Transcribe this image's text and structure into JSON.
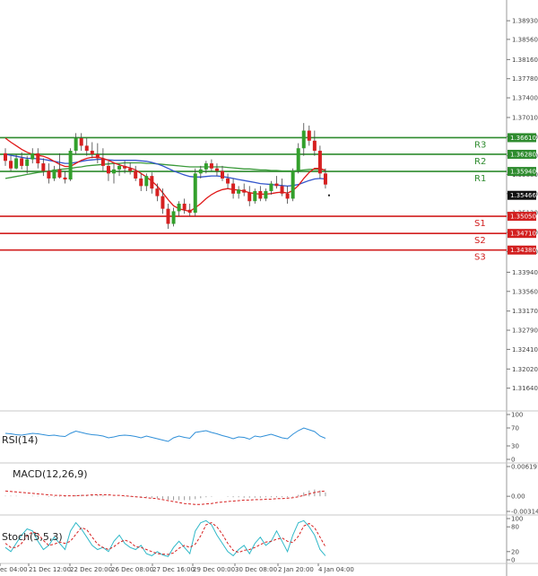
{
  "chart_data": {
    "type": "candlestick",
    "main": {
      "ylim": [
        1.3126,
        1.3927
      ],
      "price_ticks": [
        "1.38930",
        "1.38560",
        "1.38160",
        "1.37780",
        "1.37400",
        "1.37010",
        "1.36630",
        "1.36250",
        "1.35880",
        "1.35500",
        "1.35120",
        "1.34730",
        "1.34350",
        "1.33940",
        "1.33560",
        "1.33170",
        "1.32790",
        "1.32410",
        "1.32020",
        "1.31640"
      ],
      "resistance": [
        {
          "label": "R3",
          "value": 1.3661,
          "tag": "1.36610"
        },
        {
          "label": "R2",
          "value": 1.3628,
          "tag": "1.36280"
        },
        {
          "label": "R1",
          "value": 1.3594,
          "tag": "1.35940"
        }
      ],
      "support": [
        {
          "label": "S1",
          "value": 1.3505,
          "tag": "1.35050"
        },
        {
          "label": "S2",
          "value": 1.3471,
          "tag": "1.34710"
        },
        {
          "label": "S3",
          "value": 1.3438,
          "tag": "1.34380"
        }
      ],
      "last_price": {
        "value": 1.35466,
        "tag": "1.35466"
      },
      "candles": [
        [
          1.363,
          1.364,
          1.3605,
          1.3615
        ],
        [
          1.3615,
          1.3625,
          1.3595,
          1.36
        ],
        [
          1.36,
          1.3628,
          1.3598,
          1.362
        ],
        [
          1.362,
          1.3632,
          1.3598,
          1.3605
        ],
        [
          1.3605,
          1.3625,
          1.359,
          1.3618
        ],
        [
          1.3618,
          1.364,
          1.361,
          1.363
        ],
        [
          1.363,
          1.364,
          1.36,
          1.361
        ],
        [
          1.361,
          1.362,
          1.3585,
          1.3595
        ],
        [
          1.3595,
          1.361,
          1.357,
          1.358
        ],
        [
          1.358,
          1.3605,
          1.3575,
          1.3598
        ],
        [
          1.3598,
          1.363,
          1.358,
          1.3582
        ],
        [
          1.3582,
          1.3595,
          1.357,
          1.3578
        ],
        [
          1.3578,
          1.364,
          1.3575,
          1.3635
        ],
        [
          1.3635,
          1.367,
          1.3628,
          1.366
        ],
        [
          1.366,
          1.367,
          1.3635,
          1.3645
        ],
        [
          1.3645,
          1.366,
          1.3625,
          1.3635
        ],
        [
          1.3635,
          1.3652,
          1.362,
          1.3628
        ],
        [
          1.3628,
          1.365,
          1.361,
          1.362
        ],
        [
          1.362,
          1.364,
          1.3595,
          1.3605
        ],
        [
          1.3605,
          1.3615,
          1.3575,
          1.359
        ],
        [
          1.359,
          1.361,
          1.357,
          1.3598
        ],
        [
          1.3598,
          1.361,
          1.3585,
          1.3605
        ],
        [
          1.3605,
          1.3615,
          1.359,
          1.36
        ],
        [
          1.36,
          1.3612,
          1.3588,
          1.3595
        ],
        [
          1.3595,
          1.3605,
          1.3575,
          1.358
        ],
        [
          1.358,
          1.359,
          1.3555,
          1.3565
        ],
        [
          1.3565,
          1.359,
          1.3555,
          1.3585
        ],
        [
          1.3585,
          1.3592,
          1.355,
          1.356
        ],
        [
          1.356,
          1.357,
          1.3535,
          1.3545
        ],
        [
          1.3545,
          1.356,
          1.351,
          1.352
        ],
        [
          1.352,
          1.353,
          1.348,
          1.349
        ],
        [
          1.349,
          1.3522,
          1.3485,
          1.3515
        ],
        [
          1.3515,
          1.3535,
          1.3505,
          1.353
        ],
        [
          1.353,
          1.354,
          1.351,
          1.3518
        ],
        [
          1.3518,
          1.353,
          1.3505,
          1.3512
        ],
        [
          1.3512,
          1.36,
          1.3505,
          1.359
        ],
        [
          1.359,
          1.3605,
          1.358,
          1.3598
        ],
        [
          1.3598,
          1.3615,
          1.359,
          1.361
        ],
        [
          1.361,
          1.3618,
          1.3595,
          1.36
        ],
        [
          1.36,
          1.361,
          1.3585,
          1.3595
        ],
        [
          1.3595,
          1.3605,
          1.3575,
          1.358
        ],
        [
          1.358,
          1.359,
          1.356,
          1.357
        ],
        [
          1.357,
          1.358,
          1.354,
          1.355
        ],
        [
          1.355,
          1.3565,
          1.354,
          1.3558
        ],
        [
          1.3558,
          1.357,
          1.3545,
          1.3552
        ],
        [
          1.3552,
          1.3565,
          1.3525,
          1.3535
        ],
        [
          1.3535,
          1.356,
          1.353,
          1.3555
        ],
        [
          1.3555,
          1.3565,
          1.3535,
          1.354
        ],
        [
          1.354,
          1.356,
          1.3535,
          1.3555
        ],
        [
          1.3555,
          1.3575,
          1.3548,
          1.357
        ],
        [
          1.357,
          1.3585,
          1.356,
          1.3565
        ],
        [
          1.3565,
          1.358,
          1.3545,
          1.355
        ],
        [
          1.355,
          1.3565,
          1.353,
          1.354
        ],
        [
          1.354,
          1.36,
          1.3535,
          1.3595
        ],
        [
          1.3595,
          1.365,
          1.359,
          1.364
        ],
        [
          1.364,
          1.369,
          1.3625,
          1.3675
        ],
        [
          1.3675,
          1.3685,
          1.3645,
          1.3655
        ],
        [
          1.3655,
          1.3675,
          1.3625,
          1.3635
        ],
        [
          1.3635,
          1.3645,
          1.358,
          1.359
        ],
        [
          1.359,
          1.36,
          1.356,
          1.3568
        ]
      ],
      "ma_fast": [
        1.366,
        1.3652,
        1.3645,
        1.3638,
        1.3632,
        1.3628,
        1.3626,
        1.3624,
        1.362,
        1.3614,
        1.3608,
        1.3604,
        1.3604,
        1.361,
        1.3616,
        1.362,
        1.3622,
        1.3622,
        1.362,
        1.3616,
        1.3611,
        1.3607,
        1.3604,
        1.3601,
        1.3597,
        1.359,
        1.3583,
        1.3575,
        1.3565,
        1.3552,
        1.3538,
        1.3526,
        1.352,
        1.3517,
        1.3515,
        1.3522,
        1.353,
        1.354,
        1.3548,
        1.3554,
        1.3558,
        1.356,
        1.3558,
        1.3557,
        1.3555,
        1.3552,
        1.355,
        1.3549,
        1.3549,
        1.355,
        1.3552,
        1.3553,
        1.3551,
        1.3556,
        1.3566,
        1.358,
        1.3592,
        1.36,
        1.36,
        1.3596
      ],
      "ma_mid": [
        1.3628,
        1.3626,
        1.3624,
        1.3622,
        1.362,
        1.362,
        1.3619,
        1.3618,
        1.3616,
        1.3614,
        1.3612,
        1.361,
        1.361,
        1.3612,
        1.3614,
        1.3616,
        1.3617,
        1.3618,
        1.3618,
        1.3617,
        1.3616,
        1.3616,
        1.3616,
        1.3616,
        1.3616,
        1.3615,
        1.3614,
        1.3612,
        1.3609,
        1.3605,
        1.36,
        1.3595,
        1.3591,
        1.3587,
        1.3584,
        1.3583,
        1.3583,
        1.3584,
        1.3585,
        1.3585,
        1.3584,
        1.3582,
        1.358,
        1.3578,
        1.3576,
        1.3574,
        1.3572,
        1.357,
        1.3569,
        1.3568,
        1.3567,
        1.3566,
        1.3565,
        1.3566,
        1.3568,
        1.3572,
        1.3576,
        1.3579,
        1.358,
        1.3579
      ],
      "ma_slow": [
        1.358,
        1.3582,
        1.3584,
        1.3586,
        1.3588,
        1.359,
        1.3592,
        1.3593,
        1.3595,
        1.3596,
        1.3598,
        1.3599,
        1.36,
        1.3602,
        1.3603,
        1.3605,
        1.3606,
        1.3607,
        1.3608,
        1.3609,
        1.361,
        1.361,
        1.3611,
        1.3611,
        1.3611,
        1.3611,
        1.361,
        1.361,
        1.3609,
        1.3608,
        1.3607,
        1.3606,
        1.3605,
        1.3604,
        1.3603,
        1.3603,
        1.3603,
        1.3603,
        1.3603,
        1.3603,
        1.3603,
        1.3602,
        1.3601,
        1.36,
        1.3599,
        1.3599,
        1.3598,
        1.3597,
        1.3597,
        1.3596,
        1.3596,
        1.3595,
        1.3595,
        1.3595,
        1.3596,
        1.3597,
        1.3598,
        1.3598,
        1.3598,
        1.3597
      ]
    },
    "x_labels": [
      "ec 04:00",
      "21 Dec 12:00",
      "22 Dec 20:00",
      "26 Dec 08:00",
      "27 Dec 16:00",
      "29 Dec 00:00",
      "30 Dec 08:00",
      "2 Jan 20:00",
      "4 Jan 04:00"
    ],
    "rsi": {
      "name": "RSI(14)",
      "ticks": [
        "100",
        "70",
        "30",
        "0"
      ],
      "values": [
        58,
        57,
        55,
        54,
        56,
        58,
        57,
        55,
        53,
        54,
        52,
        51,
        58,
        63,
        60,
        57,
        55,
        54,
        52,
        48,
        50,
        53,
        54,
        53,
        51,
        48,
        52,
        49,
        46,
        43,
        40,
        48,
        52,
        49,
        47,
        60,
        62,
        64,
        60,
        57,
        53,
        50,
        46,
        50,
        49,
        45,
        52,
        50,
        53,
        56,
        52,
        48,
        46,
        56,
        64,
        70,
        66,
        62,
        52,
        47
      ]
    },
    "macd": {
      "name": "MACD(12,26,9)",
      "ticks": [
        "0.006191",
        "0.00",
        "-0.003148"
      ],
      "hist": [
        0.0001,
        0.0001,
        0.0001,
        0.0,
        0.0,
        0.0001,
        0.0001,
        0.0,
        -0.0001,
        -0.0001,
        -0.0001,
        -0.0001,
        0.0,
        0.0002,
        0.0003,
        0.0003,
        0.0003,
        0.0002,
        0.0002,
        0.0001,
        0.0,
        0.0,
        -0.0001,
        -0.0001,
        -0.0001,
        -0.0002,
        -0.0002,
        -0.0003,
        -0.0004,
        -0.0005,
        -0.0007,
        -0.0008,
        -0.0008,
        -0.0008,
        -0.0008,
        -0.0006,
        -0.0004,
        -0.0002,
        -0.0001,
        0.0,
        0.0,
        -0.0001,
        -0.0002,
        -0.0002,
        -0.0003,
        -0.0003,
        -0.0003,
        -0.0003,
        -0.0002,
        -0.0002,
        -0.0002,
        -0.0002,
        -0.0002,
        -0.0001,
        0.0003,
        0.0008,
        0.0012,
        0.0014,
        0.0012,
        0.0008
      ],
      "signal": [
        0.0011,
        0.001,
        0.0009,
        0.0008,
        0.0007,
        0.0006,
        0.0005,
        0.0004,
        0.0003,
        0.0002,
        0.0002,
        0.0001,
        0.0001,
        0.0001,
        0.0002,
        0.0002,
        0.0003,
        0.0003,
        0.0003,
        0.0003,
        0.0002,
        0.0002,
        0.0001,
        0.0,
        -0.0001,
        -0.0002,
        -0.0003,
        -0.0004,
        -0.0005,
        -0.0007,
        -0.0009,
        -0.0011,
        -0.0013,
        -0.0015,
        -0.0016,
        -0.0017,
        -0.0017,
        -0.0016,
        -0.0015,
        -0.0013,
        -0.0012,
        -0.0011,
        -0.001,
        -0.0009,
        -0.0008,
        -0.0008,
        -0.0007,
        -0.0007,
        -0.0006,
        -0.0006,
        -0.0005,
        -0.0005,
        -0.0004,
        -0.0003,
        -0.0001,
        0.0002,
        0.0005,
        0.0008,
        0.001,
        0.0011
      ]
    },
    "stoch": {
      "name": "Stoch(5,5,3)",
      "ticks": [
        "100",
        "80",
        "20",
        "0"
      ],
      "k": [
        30,
        20,
        40,
        60,
        75,
        70,
        45,
        25,
        35,
        55,
        40,
        25,
        70,
        90,
        75,
        55,
        35,
        25,
        30,
        20,
        45,
        60,
        40,
        30,
        25,
        35,
        15,
        10,
        20,
        12,
        8,
        30,
        45,
        30,
        15,
        70,
        90,
        95,
        85,
        60,
        40,
        20,
        10,
        25,
        35,
        15,
        40,
        55,
        35,
        45,
        70,
        45,
        20,
        60,
        90,
        95,
        80,
        60,
        25,
        10
      ],
      "d": [
        40,
        30,
        30,
        40,
        58,
        68,
        63,
        47,
        35,
        38,
        43,
        40,
        45,
        62,
        78,
        73,
        55,
        38,
        30,
        25,
        32,
        42,
        48,
        43,
        32,
        30,
        25,
        20,
        15,
        14,
        13,
        17,
        28,
        35,
        30,
        38,
        58,
        85,
        90,
        80,
        62,
        40,
        23,
        18,
        23,
        25,
        30,
        37,
        43,
        45,
        50,
        53,
        45,
        42,
        57,
        82,
        88,
        78,
        55,
        32
      ]
    }
  }
}
